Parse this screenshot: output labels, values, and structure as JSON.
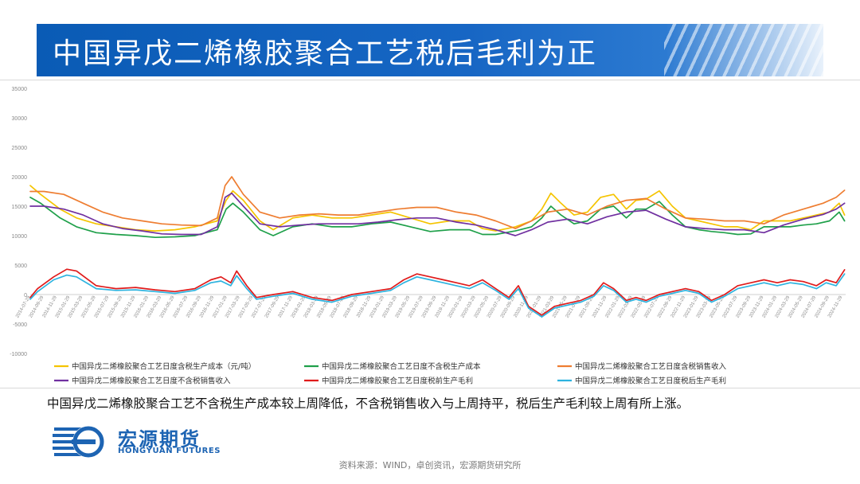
{
  "header": {
    "title": "中国异戊二烯橡胶聚合工艺税后毛利为正"
  },
  "summary": {
    "text": "中国异戊二烯橡胶聚合工艺不含税生产成本较上周降低，不含税销售收入与上周持平，税后生产毛利较上周有所上涨。"
  },
  "logo": {
    "name": "宏源期货",
    "sub": "HONGYUAN FUTURES"
  },
  "footer": {
    "source": "资料来源：WIND，卓创资讯，宏源期货研究所"
  },
  "chart_data": {
    "type": "line",
    "title": "",
    "xlabel": "",
    "ylabel": "",
    "ylim": [
      -10000,
      35000
    ],
    "yticks": [
      -10000,
      -5000,
      0,
      5000,
      10000,
      15000,
      20000,
      25000,
      30000,
      35000
    ],
    "grid": false,
    "legend_position": "bottom",
    "xlim": [
      "2014-07-29",
      "2024-12-15"
    ],
    "x_tick_labels": [
      "2014-07-29",
      "2014-09-29",
      "2014-11-29",
      "2015-01-29",
      "2015-03-29",
      "2015-05-29",
      "2015-07-29",
      "2015-09-29",
      "2015-11-29",
      "2016-01-29",
      "2016-03-29",
      "2016-05-29",
      "2016-07-29",
      "2016-09-29",
      "2016-11-29",
      "2017-01-29",
      "2017-03-29",
      "2017-05-29",
      "2017-07-29",
      "2017-09-29",
      "2017-11-29",
      "2018-01-29",
      "2018-03-29",
      "2018-05-29",
      "2018-07-29",
      "2018-09-29",
      "2018-11-29",
      "2019-01-29",
      "2019-03-29",
      "2019-05-29",
      "2019-07-29",
      "2019-09-29",
      "2019-11-29",
      "2020-01-29",
      "2020-03-29",
      "2020-05-29",
      "2020-07-29",
      "2020-09-29",
      "2020-11-29",
      "2021-01-29",
      "2021-03-29",
      "2021-05-29",
      "2021-07-29",
      "2021-09-29",
      "2021-11-29",
      "2022-01-29",
      "2022-03-29",
      "2022-05-29",
      "2022-07-29",
      "2022-09-29",
      "2022-11-29",
      "2023-01-29",
      "2023-03-29",
      "2023-05-29",
      "2023-07-29",
      "2023-09-29",
      "2023-11-29",
      "2024-01-29",
      "2024-03-29",
      "2024-05-29",
      "2024-07-29",
      "2024-09-29",
      "2024-11-29"
    ],
    "series": [
      {
        "name": "中国异戊二烯橡胶聚合工艺日度含税生产成本（元/吨）",
        "color": "#f5c400",
        "x": [
          "2014-07-29",
          "2014-09-15",
          "2014-12-15",
          "2015-03-01",
          "2015-06-01",
          "2015-09-01",
          "2015-12-01",
          "2016-03-01",
          "2016-06-01",
          "2016-09-01",
          "2016-12-15",
          "2017-01-25",
          "2017-02-25",
          "2017-04-15",
          "2017-07-01",
          "2017-09-01",
          "2017-12-01",
          "2018-03-01",
          "2018-06-01",
          "2018-09-01",
          "2018-12-01",
          "2019-03-01",
          "2019-06-01",
          "2019-09-01",
          "2019-12-01",
          "2020-03-01",
          "2020-05-01",
          "2020-07-01",
          "2020-10-01",
          "2020-12-15",
          "2021-02-01",
          "2021-03-15",
          "2021-05-01",
          "2021-07-01",
          "2021-09-01",
          "2021-11-01",
          "2022-01-01",
          "2022-03-01",
          "2022-04-15",
          "2022-06-01",
          "2022-08-01",
          "2022-10-01",
          "2022-12-01",
          "2023-02-01",
          "2023-04-01",
          "2023-06-01",
          "2023-08-01",
          "2023-10-01",
          "2023-12-01",
          "2024-02-01",
          "2024-04-01",
          "2024-06-01",
          "2024-08-01",
          "2024-10-01",
          "2024-11-15",
          "2024-12-10"
        ],
        "y": [
          18500,
          17000,
          14500,
          13000,
          12000,
          11500,
          11000,
          10800,
          11000,
          11500,
          12500,
          16000,
          17600,
          16000,
          12500,
          11000,
          13000,
          13500,
          13000,
          13000,
          13500,
          14000,
          13000,
          12000,
          12500,
          12500,
          11200,
          10800,
          11500,
          12500,
          14500,
          17200,
          15500,
          13500,
          14000,
          16500,
          17000,
          14500,
          16000,
          16200,
          17600,
          15000,
          13000,
          12500,
          12000,
          11500,
          11500,
          11000,
          12500,
          12500,
          12500,
          13000,
          13500,
          14000,
          15500,
          13500
        ]
      },
      {
        "name": "中国异戊二烯橡胶聚合工艺日度不含税生产成本",
        "color": "#1fa04a",
        "x": [
          "2014-07-29",
          "2014-09-15",
          "2014-12-15",
          "2015-03-01",
          "2015-06-01",
          "2015-09-01",
          "2015-12-01",
          "2016-03-01",
          "2016-06-01",
          "2016-09-01",
          "2016-12-15",
          "2017-01-25",
          "2017-02-25",
          "2017-04-15",
          "2017-07-01",
          "2017-09-01",
          "2017-12-01",
          "2018-03-01",
          "2018-06-01",
          "2018-09-01",
          "2018-12-01",
          "2019-03-01",
          "2019-06-01",
          "2019-09-01",
          "2019-12-01",
          "2020-03-01",
          "2020-05-01",
          "2020-07-01",
          "2020-10-01",
          "2020-12-15",
          "2021-02-01",
          "2021-03-15",
          "2021-05-01",
          "2021-07-01",
          "2021-09-01",
          "2021-11-01",
          "2022-01-01",
          "2022-03-01",
          "2022-04-15",
          "2022-06-01",
          "2022-08-01",
          "2022-10-01",
          "2022-12-01",
          "2023-02-01",
          "2023-04-01",
          "2023-06-01",
          "2023-08-01",
          "2023-10-01",
          "2023-12-01",
          "2024-02-01",
          "2024-04-01",
          "2024-06-01",
          "2024-08-01",
          "2024-10-01",
          "2024-11-15",
          "2024-12-10"
        ],
        "y": [
          16500,
          15500,
          13000,
          11500,
          10500,
          10200,
          10000,
          9700,
          9800,
          10000,
          11000,
          14500,
          15500,
          14000,
          11000,
          10000,
          11500,
          12000,
          11500,
          11500,
          12000,
          12300,
          11500,
          10700,
          11000,
          11000,
          10200,
          10200,
          10800,
          11500,
          13000,
          15000,
          13500,
          12000,
          12500,
          14500,
          15000,
          13000,
          14500,
          14500,
          15800,
          13500,
          11500,
          11000,
          10700,
          10500,
          10200,
          10300,
          11500,
          11500,
          11500,
          11800,
          12000,
          12500,
          14000,
          12500
        ]
      },
      {
        "name": "中国异戊二烯橡胶聚合工艺日度含税销售收入",
        "color": "#ee7d31",
        "x": [
          "2014-07-29",
          "2014-10-01",
          "2015-01-01",
          "2015-04-01",
          "2015-07-01",
          "2015-10-01",
          "2016-01-01",
          "2016-04-01",
          "2016-07-01",
          "2016-10-01",
          "2016-12-15",
          "2017-01-20",
          "2017-02-20",
          "2017-04-15",
          "2017-07-01",
          "2017-10-01",
          "2018-01-01",
          "2018-04-01",
          "2018-07-01",
          "2018-10-01",
          "2019-01-01",
          "2019-04-01",
          "2019-07-01",
          "2019-10-01",
          "2020-01-01",
          "2020-04-01",
          "2020-07-01",
          "2020-10-01",
          "2020-12-15",
          "2021-03-01",
          "2021-06-01",
          "2021-09-01",
          "2021-12-01",
          "2022-03-01",
          "2022-06-01",
          "2022-09-01",
          "2022-12-01",
          "2023-03-01",
          "2023-06-01",
          "2023-09-01",
          "2023-12-01",
          "2024-03-01",
          "2024-06-01",
          "2024-09-01",
          "2024-11-01",
          "2024-12-10"
        ],
        "y": [
          17500,
          17500,
          17000,
          15500,
          14000,
          13000,
          12500,
          12000,
          11800,
          11700,
          13000,
          18500,
          20000,
          17000,
          14000,
          13000,
          13500,
          13700,
          13500,
          13500,
          14000,
          14500,
          14800,
          14800,
          14000,
          13500,
          12500,
          11200,
          12500,
          14000,
          14500,
          13500,
          15000,
          16000,
          16300,
          14500,
          13000,
          12800,
          12500,
          12500,
          12000,
          13500,
          14500,
          15500,
          16500,
          17700
        ]
      },
      {
        "name": "中国异戊二烯橡胶聚合工艺日度不含税销售收入",
        "color": "#7030a0",
        "x": [
          "2014-07-29",
          "2014-10-01",
          "2015-01-01",
          "2015-04-01",
          "2015-07-01",
          "2015-10-01",
          "2016-01-01",
          "2016-04-01",
          "2016-07-01",
          "2016-10-01",
          "2016-12-15",
          "2017-01-20",
          "2017-02-20",
          "2017-04-15",
          "2017-07-01",
          "2017-10-01",
          "2018-01-01",
          "2018-04-01",
          "2018-07-01",
          "2018-10-01",
          "2019-01-01",
          "2019-04-01",
          "2019-07-01",
          "2019-10-01",
          "2020-01-01",
          "2020-04-01",
          "2020-07-01",
          "2020-10-01",
          "2020-12-15",
          "2021-03-01",
          "2021-06-01",
          "2021-09-01",
          "2021-12-01",
          "2022-03-01",
          "2022-06-01",
          "2022-09-01",
          "2022-12-01",
          "2023-03-01",
          "2023-06-01",
          "2023-09-01",
          "2023-12-01",
          "2024-03-01",
          "2024-06-01",
          "2024-09-01",
          "2024-11-01",
          "2024-12-10"
        ],
        "y": [
          15000,
          15000,
          14500,
          13500,
          12000,
          11200,
          10800,
          10300,
          10200,
          10200,
          11500,
          16500,
          17200,
          15000,
          12000,
          11500,
          11800,
          12000,
          12000,
          12000,
          12300,
          12700,
          13000,
          13000,
          12300,
          11800,
          11000,
          10000,
          11000,
          12300,
          12800,
          12000,
          13200,
          14000,
          14300,
          12800,
          11500,
          11200,
          11000,
          11000,
          10500,
          11800,
          12800,
          13600,
          14500,
          15500
        ]
      },
      {
        "name": "中国异戊二烯橡胶聚合工艺日度税前生产毛利",
        "color": "#e01b1b",
        "x": [
          "2014-07-29",
          "2014-09-01",
          "2014-11-15",
          "2015-01-15",
          "2015-03-01",
          "2015-06-01",
          "2015-09-01",
          "2015-12-01",
          "2016-03-01",
          "2016-06-01",
          "2016-09-01",
          "2016-11-15",
          "2017-01-01",
          "2017-02-15",
          "2017-03-15",
          "2017-05-01",
          "2017-06-15",
          "2017-09-01",
          "2017-12-01",
          "2018-03-01",
          "2018-06-01",
          "2018-09-01",
          "2018-12-01",
          "2019-03-01",
          "2019-05-01",
          "2019-07-01",
          "2019-09-01",
          "2019-11-01",
          "2020-01-01",
          "2020-03-01",
          "2020-05-01",
          "2020-07-01",
          "2020-09-01",
          "2020-10-15",
          "2020-12-01",
          "2021-02-01",
          "2021-04-01",
          "2021-06-01",
          "2021-08-01",
          "2021-10-01",
          "2021-11-15",
          "2022-01-01",
          "2022-03-01",
          "2022-04-15",
          "2022-06-01",
          "2022-08-01",
          "2022-10-01",
          "2022-12-01",
          "2023-02-01",
          "2023-04-01",
          "2023-06-01",
          "2023-08-01",
          "2023-10-01",
          "2023-12-01",
          "2024-02-01",
          "2024-04-01",
          "2024-06-01",
          "2024-08-01",
          "2024-09-15",
          "2024-11-01",
          "2024-12-10"
        ],
        "y": [
          -500,
          1000,
          3000,
          4300,
          4000,
          1500,
          1000,
          1200,
          800,
          500,
          1000,
          2500,
          3000,
          2000,
          4000,
          1500,
          -500,
          0,
          500,
          -500,
          -1000,
          0,
          500,
          1000,
          2500,
          3500,
          3000,
          2500,
          2000,
          1500,
          2500,
          1000,
          -500,
          1500,
          -2000,
          -3500,
          -2000,
          -1500,
          -1000,
          0,
          2000,
          1000,
          -1000,
          -500,
          -1000,
          0,
          500,
          1000,
          500,
          -1000,
          0,
          1500,
          2000,
          2500,
          2000,
          2500,
          2200,
          1500,
          2500,
          2000,
          4200
        ]
      },
      {
        "name": "中国异戊二烯橡胶聚合工艺日度税后生产毛利",
        "color": "#2db3df",
        "x": [
          "2014-07-29",
          "2014-09-01",
          "2014-11-15",
          "2015-01-15",
          "2015-03-01",
          "2015-06-01",
          "2015-09-01",
          "2015-12-01",
          "2016-03-01",
          "2016-06-01",
          "2016-09-01",
          "2016-11-15",
          "2017-01-01",
          "2017-02-15",
          "2017-03-15",
          "2017-05-01",
          "2017-06-15",
          "2017-09-01",
          "2017-12-01",
          "2018-03-01",
          "2018-06-01",
          "2018-09-01",
          "2018-12-01",
          "2019-03-01",
          "2019-05-01",
          "2019-07-01",
          "2019-09-01",
          "2019-11-01",
          "2020-01-01",
          "2020-03-01",
          "2020-05-01",
          "2020-07-01",
          "2020-09-01",
          "2020-10-15",
          "2020-12-01",
          "2021-02-01",
          "2021-04-01",
          "2021-06-01",
          "2021-08-01",
          "2021-10-01",
          "2021-11-15",
          "2022-01-01",
          "2022-03-01",
          "2022-04-15",
          "2022-06-01",
          "2022-08-01",
          "2022-10-01",
          "2022-12-01",
          "2023-02-01",
          "2023-04-01",
          "2023-06-01",
          "2023-08-01",
          "2023-10-01",
          "2023-12-01",
          "2024-02-01",
          "2024-04-01",
          "2024-06-01",
          "2024-08-01",
          "2024-09-15",
          "2024-11-01",
          "2024-12-10"
        ],
        "y": [
          -800,
          500,
          2500,
          3300,
          3000,
          1000,
          700,
          800,
          500,
          200,
          700,
          2000,
          2300,
          1500,
          3200,
          1000,
          -800,
          -300,
          200,
          -800,
          -1300,
          -300,
          200,
          700,
          2000,
          3000,
          2500,
          2000,
          1500,
          1000,
          2000,
          700,
          -800,
          1000,
          -2300,
          -3800,
          -2300,
          -1800,
          -1300,
          -300,
          1500,
          700,
          -1300,
          -800,
          -1300,
          -300,
          200,
          700,
          200,
          -1300,
          -300,
          1000,
          1500,
          2000,
          1500,
          2000,
          1700,
          1000,
          2000,
          1500,
          3500
        ]
      }
    ]
  }
}
